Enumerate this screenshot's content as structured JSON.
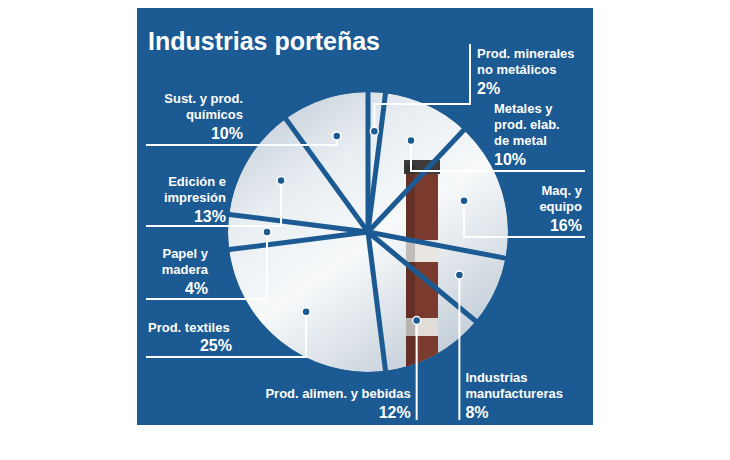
{
  "chart_data": {
    "type": "pie",
    "title": "Industrias porteñas",
    "categories": [
      "Prod. minerales no metálicos",
      "Metales y prod. elab. de metal",
      "Maq. y equipo",
      "Industrias manufactureras",
      "Prod. alimen. y bebidas",
      "Prod. textiles",
      "Papel y madera",
      "Edición e impresión",
      "Sust. y prod. químicos"
    ],
    "values": [
      2,
      10,
      16,
      8,
      12,
      25,
      4,
      13,
      10
    ],
    "value_labels": [
      "2%",
      "10%",
      "16%",
      "8%",
      "12%",
      "25%",
      "4%",
      "13%",
      "10%"
    ],
    "data_labels": true
  }
}
